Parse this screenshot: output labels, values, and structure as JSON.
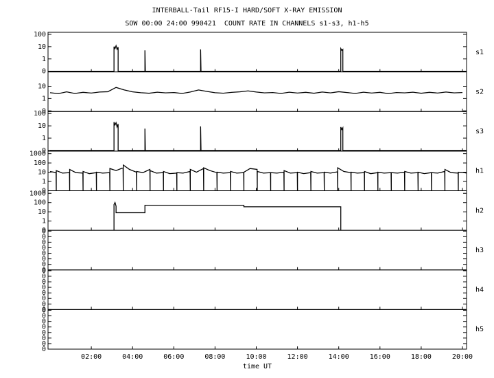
{
  "chart_data": {
    "type": "line",
    "title": "INTERBALL-Tail RF15-I HARD/SOFT X-RAY EMISSION",
    "subtitle": "SOW 00:00 24:00 990421  COUNT RATE IN CHANNELS s1-s3, h1-h5",
    "xlabel": "time UT",
    "color": "#000000",
    "xlim": [
      -0.1,
      20.2
    ],
    "xticks": [
      {
        "value": 2,
        "label": "02:00"
      },
      {
        "value": 4,
        "label": "04:00"
      },
      {
        "value": 6,
        "label": "06:00"
      },
      {
        "value": 8,
        "label": "08:00"
      },
      {
        "value": 10,
        "label": "10:00"
      },
      {
        "value": 12,
        "label": "12:00"
      },
      {
        "value": 14,
        "label": "14:00"
      },
      {
        "value": 16,
        "label": "16:00"
      },
      {
        "value": 18,
        "label": "18:00"
      },
      {
        "value": 20,
        "label": "20:00"
      }
    ],
    "panels": [
      {
        "name": "s1",
        "log": true,
        "ylim": [
          0.088,
          147
        ],
        "yticks": [
          100,
          10,
          1,
          {
            "value": 0.1,
            "label": "0"
          }
        ],
        "x": [
          0,
          3.1,
          3.1,
          3.15,
          3.2,
          3.25,
          3.3,
          3.3,
          4.6,
          4.6,
          4.62,
          7.3,
          7.3,
          7.32,
          14.1,
          14.1,
          14.15,
          14.2,
          14.2,
          20.2
        ],
        "values": [
          0.1,
          0.1,
          10,
          7,
          12,
          6,
          9,
          0.1,
          0.1,
          5,
          0.1,
          0.1,
          6,
          0.1,
          0.1,
          7,
          5,
          6,
          0.1,
          0.1
        ]
      },
      {
        "name": "s2",
        "log": true,
        "ylim": [
          0.088,
          147
        ],
        "yticks": [
          10,
          1,
          {
            "value": 0.1,
            "label": "0"
          }
        ],
        "x": [
          0,
          0.4,
          0.8,
          1.2,
          1.6,
          2.0,
          2.4,
          2.8,
          3.2,
          3.6,
          4.0,
          4.4,
          4.8,
          5.2,
          5.6,
          6.0,
          6.4,
          6.8,
          7.2,
          7.6,
          8.0,
          8.4,
          8.8,
          9.2,
          9.6,
          10.0,
          10.4,
          10.8,
          11.2,
          11.6,
          12.0,
          12.4,
          12.8,
          13.2,
          13.6,
          14.0,
          14.4,
          14.8,
          15.2,
          15.6,
          16.0,
          16.4,
          16.8,
          17.2,
          17.6,
          18.0,
          18.4,
          18.8,
          19.2,
          19.6,
          20.0
        ],
        "values": [
          3,
          2.5,
          3.5,
          2.6,
          3.2,
          2.8,
          3.4,
          3.6,
          8,
          5,
          3.5,
          3,
          2.7,
          3.3,
          2.9,
          3.1,
          2.6,
          3.4,
          5,
          3.8,
          3,
          2.7,
          3.2,
          3.5,
          4.2,
          3.4,
          2.9,
          3.1,
          2.6,
          3.3,
          2.8,
          3.2,
          2.7,
          3.4,
          2.9,
          3.6,
          3.1,
          2.6,
          3.3,
          2.8,
          3.2,
          2.5,
          3.1,
          2.9,
          3.3,
          2.7,
          3.2,
          2.8,
          3.4,
          2.9,
          3.1
        ]
      },
      {
        "name": "s3",
        "log": true,
        "ylim": [
          0.088,
          147
        ],
        "yticks": [
          100,
          10,
          1,
          {
            "value": 0.1,
            "label": "0"
          }
        ],
        "x": [
          0,
          3.1,
          3.1,
          3.15,
          3.2,
          3.25,
          3.3,
          3.3,
          4.6,
          4.6,
          4.62,
          7.3,
          7.3,
          7.32,
          14.1,
          14.1,
          14.15,
          14.2,
          14.2,
          20.2
        ],
        "values": [
          0.1,
          0.1,
          20,
          12,
          18,
          8,
          14,
          0.1,
          0.1,
          6,
          0.1,
          0.1,
          9,
          0.1,
          0.1,
          8,
          5,
          7,
          0.1,
          0.1
        ]
      },
      {
        "name": "h1",
        "log": true,
        "ylim": [
          0.1,
          1900
        ],
        "yticks": [
          1000,
          100,
          10,
          1,
          {
            "value": 0.1,
            "label": "0"
          }
        ],
        "x": [
          0,
          0.29,
          0.3,
          0.3,
          0.6,
          0.94,
          0.95,
          0.95,
          1.25,
          1.59,
          1.6,
          1.6,
          1.9,
          2.24,
          2.25,
          2.25,
          2.55,
          2.89,
          2.9,
          2.9,
          3.2,
          3.54,
          3.55,
          3.55,
          3.85,
          4.19,
          4.2,
          4.2,
          4.5,
          4.84,
          4.85,
          4.85,
          5.15,
          5.49,
          5.5,
          5.5,
          5.8,
          6.14,
          6.15,
          6.15,
          6.45,
          6.79,
          6.8,
          6.8,
          7.1,
          7.44,
          7.45,
          7.45,
          7.75,
          8.09,
          8.1,
          8.1,
          8.4,
          8.74,
          8.75,
          8.75,
          9.05,
          9.39,
          9.4,
          9.4,
          9.7,
          10.04,
          10.05,
          10.05,
          10.35,
          10.69,
          10.7,
          10.7,
          11,
          11.34,
          11.35,
          11.35,
          11.65,
          11.99,
          12,
          12,
          12.3,
          12.64,
          12.65,
          12.65,
          12.95,
          13.29,
          13.3,
          13.3,
          13.6,
          13.94,
          13.95,
          13.95,
          14.25,
          14.59,
          14.6,
          14.6,
          14.9,
          15.24,
          15.25,
          15.25,
          15.55,
          15.89,
          15.9,
          15.9,
          16.2,
          16.54,
          16.55,
          16.55,
          16.85,
          17.19,
          17.2,
          17.2,
          17.5,
          17.84,
          17.85,
          17.85,
          18.15,
          18.49,
          18.5,
          18.5,
          18.8,
          19.14,
          19.15,
          19.15,
          19.45,
          19.79,
          19.8,
          19.8,
          20.1,
          20.2
        ],
        "values": [
          12,
          9,
          0.1,
          15,
          8,
          9,
          0.1,
          20,
          9,
          8,
          0.1,
          12,
          7,
          9,
          0.1,
          10,
          8,
          9,
          0.1,
          25,
          15,
          30,
          0.1,
          60,
          20,
          10,
          0.1,
          12,
          9,
          20,
          0.1,
          15,
          8,
          9,
          0.1,
          12,
          7,
          8,
          0.1,
          9,
          8,
          12,
          0.1,
          20,
          10,
          25,
          0.1,
          30,
          15,
          9,
          0.1,
          10,
          8,
          9,
          0.1,
          12,
          8,
          9,
          0.1,
          10,
          25,
          20,
          0.1,
          12,
          8,
          9,
          0.1,
          9,
          8,
          10,
          0.1,
          15,
          8,
          9,
          0.1,
          10,
          7,
          9,
          0.1,
          12,
          8,
          9,
          0.1,
          10,
          8,
          11,
          0.1,
          30,
          12,
          9,
          0.1,
          10,
          8,
          9,
          0.1,
          12,
          7,
          9,
          0.1,
          10,
          8,
          9,
          0.1,
          9,
          8,
          10,
          0.1,
          12,
          8,
          9,
          0.1,
          10,
          7,
          9,
          0.1,
          9,
          8,
          12,
          0.1,
          20,
          9,
          8,
          0.1,
          10,
          9,
          8
        ]
      },
      {
        "name": "h2",
        "log": true,
        "ylim": [
          0.1,
          1900
        ],
        "yticks": [
          1000,
          100,
          10,
          1,
          {
            "value": 0.1,
            "label": "0"
          }
        ],
        "x": [
          3.1,
          3.1,
          3.15,
          3.2,
          3.2,
          4.6,
          4.6,
          9.4,
          9.4,
          14.1,
          14.1
        ],
        "values": [
          0.1,
          60,
          100,
          40,
          8,
          8,
          50,
          50,
          35,
          35,
          0.1
        ]
      },
      {
        "name": "h3",
        "log": false,
        "ylim": [
          0,
          1
        ],
        "yticks": [
          0,
          {
            "value": 0.14,
            "label": "0"
          },
          {
            "value": 0.28,
            "label": "0"
          },
          {
            "value": 0.42,
            "label": "0"
          },
          {
            "value": 0.56,
            "label": "0"
          },
          {
            "value": 0.7,
            "label": "0"
          },
          {
            "value": 0.84,
            "label": "0"
          },
          {
            "value": 0.98,
            "label": "0"
          }
        ]
      },
      {
        "name": "h4",
        "log": false,
        "ylim": [
          0,
          1
        ],
        "yticks": [
          0,
          {
            "value": 0.14,
            "label": "0"
          },
          {
            "value": 0.28,
            "label": "0"
          },
          {
            "value": 0.42,
            "label": "0"
          },
          {
            "value": 0.56,
            "label": "0"
          },
          {
            "value": 0.7,
            "label": "0"
          },
          {
            "value": 0.84,
            "label": "0"
          },
          {
            "value": 0.98,
            "label": "0"
          }
        ]
      },
      {
        "name": "h5",
        "log": false,
        "ylim": [
          0,
          1
        ],
        "yticks": [
          0,
          {
            "value": 0.14,
            "label": "0"
          },
          {
            "value": 0.28,
            "label": "0"
          },
          {
            "value": 0.42,
            "label": "0"
          },
          {
            "value": 0.56,
            "label": "0"
          },
          {
            "value": 0.7,
            "label": "0"
          },
          {
            "value": 0.84,
            "label": "0"
          },
          {
            "value": 0.98,
            "label": "0"
          }
        ]
      }
    ]
  }
}
